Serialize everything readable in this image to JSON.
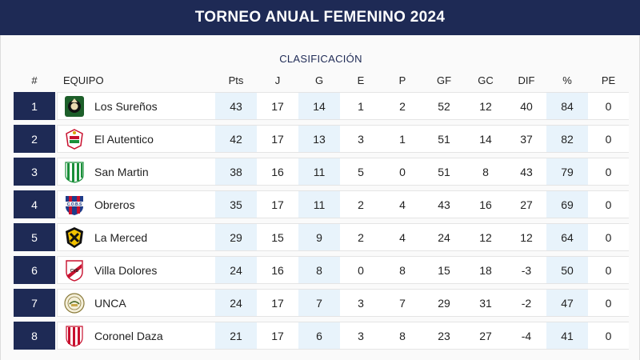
{
  "header": {
    "title": "TORNEO ANUAL FEMENINO 2024"
  },
  "table": {
    "subtitle": "CLASIFICACIÓN",
    "columns": [
      "#",
      "EQUIPO",
      "Pts",
      "J",
      "G",
      "E",
      "P",
      "GF",
      "GC",
      "DIF",
      "%",
      "PE"
    ],
    "rows": [
      {
        "pos": "1",
        "team": "Los Sureños",
        "crest": "green-black-crest-icon",
        "pts": "43",
        "j": "17",
        "g": "14",
        "e": "1",
        "p": "2",
        "gf": "52",
        "gc": "12",
        "dif": "40",
        "pct": "84",
        "pe": "0"
      },
      {
        "pos": "2",
        "team": "El Autentico",
        "crest": "red-green-crest-icon",
        "pts": "42",
        "j": "17",
        "g": "13",
        "e": "3",
        "p": "1",
        "gf": "51",
        "gc": "14",
        "dif": "37",
        "pct": "82",
        "pe": "0"
      },
      {
        "pos": "3",
        "team": "San Martin",
        "crest": "green-white-striped-crest-icon",
        "pts": "38",
        "j": "16",
        "g": "11",
        "e": "5",
        "p": "0",
        "gf": "51",
        "gc": "8",
        "dif": "43",
        "pct": "79",
        "pe": "0"
      },
      {
        "pos": "4",
        "team": "Obreros",
        "crest": "red-blue-cobs-crest-icon",
        "pts": "35",
        "j": "17",
        "g": "11",
        "e": "2",
        "p": "4",
        "gf": "43",
        "gc": "16",
        "dif": "27",
        "pct": "69",
        "pe": "0"
      },
      {
        "pos": "5",
        "team": "La Merced",
        "crest": "yellow-black-crest-icon",
        "pts": "29",
        "j": "15",
        "g": "9",
        "e": "2",
        "p": "4",
        "gf": "24",
        "gc": "12",
        "dif": "12",
        "pct": "64",
        "pe": "0"
      },
      {
        "pos": "6",
        "team": "Villa Dolores",
        "crest": "red-white-sash-crest-icon",
        "pts": "24",
        "j": "16",
        "g": "8",
        "e": "0",
        "p": "8",
        "gf": "15",
        "gc": "18",
        "dif": "-3",
        "pct": "50",
        "pe": "0"
      },
      {
        "pos": "7",
        "team": "UNCA",
        "crest": "round-seal-crest-icon",
        "pts": "24",
        "j": "17",
        "g": "7",
        "e": "3",
        "p": "7",
        "gf": "29",
        "gc": "31",
        "dif": "-2",
        "pct": "47",
        "pe": "0"
      },
      {
        "pos": "8",
        "team": "Coronel Daza",
        "crest": "red-white-striped-crest-icon",
        "pts": "21",
        "j": "17",
        "g": "6",
        "e": "3",
        "p": "8",
        "gf": "23",
        "gc": "27",
        "dif": "-4",
        "pct": "41",
        "pe": "0"
      }
    ]
  },
  "colors": {
    "header_bg": "#1e2a55",
    "position_bg": "#1e2a55",
    "stat_alt_bg": "#e8f3fb"
  }
}
